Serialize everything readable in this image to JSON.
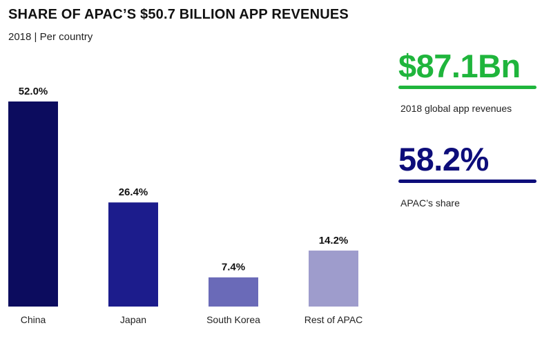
{
  "title": "SHARE OF APAC’S $50.7 BILLION APP REVENUES",
  "subtitle": "2018 | Per country",
  "chart_data": {
    "type": "bar",
    "title": "SHARE OF APAC’S $50.7 BILLION APP REVENUES",
    "subtitle": "2018 | Per country",
    "categories": [
      "China",
      "Japan",
      "South Korea",
      "Rest of APAC"
    ],
    "values": [
      52.0,
      26.4,
      7.4,
      14.2
    ],
    "value_labels": [
      "52.0%",
      "26.4%",
      "7.4%",
      "14.2%"
    ],
    "colors": [
      "#0c0c5e",
      "#1c1c8c",
      "#6a6ab8",
      "#9e9ccc"
    ],
    "ylim": [
      0,
      52.0
    ],
    "unit": "%",
    "grid": false,
    "legend": "none"
  },
  "kpis": [
    {
      "value": "$87.1Bn",
      "label": "2018 global app revenues",
      "color": "#1fb53c"
    },
    {
      "value": "58.2%",
      "label": "APAC’s share",
      "color": "#0d0d7a"
    }
  ]
}
